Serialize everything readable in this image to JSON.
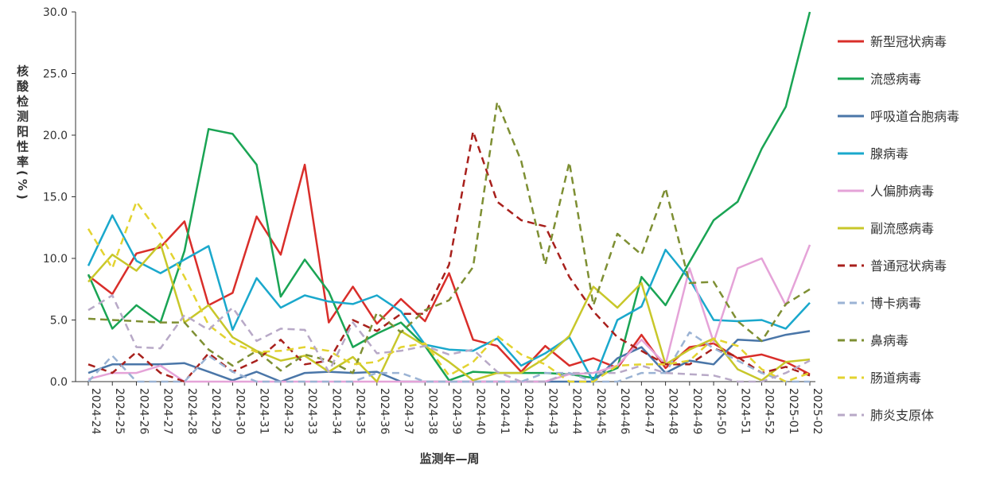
{
  "chart_data": {
    "type": "line",
    "xlabel": "监测年—周",
    "ylabel": "核酸检测阳性率(%)",
    "ylim": [
      0,
      30
    ],
    "yticks": [
      "0.0",
      "5.0",
      "10.0",
      "15.0",
      "20.0",
      "25.0",
      "30.0"
    ],
    "categories": [
      "2024-24",
      "2024-25",
      "2024-26",
      "2024-27",
      "2024-28",
      "2024-29",
      "2024-30",
      "2024-31",
      "2024-32",
      "2024-33",
      "2024-34",
      "2024-35",
      "2024-36",
      "2024-37",
      "2024-38",
      "2024-39",
      "2024-40",
      "2024-41",
      "2024-42",
      "2024-43",
      "2024-44",
      "2024-45",
      "2024-46",
      "2024-47",
      "2024-48",
      "2024-49",
      "2024-50",
      "2024-51",
      "2024-52",
      "2025-01",
      "2025-02"
    ],
    "legend_position": "right",
    "series": [
      {
        "name": "新型冠状病毒",
        "color": "#d92e2a",
        "dash": false,
        "values": [
          8.6,
          7.1,
          10.4,
          10.9,
          13.0,
          6.2,
          7.2,
          13.4,
          10.3,
          17.6,
          4.8,
          7.7,
          4.7,
          6.7,
          4.9,
          8.8,
          3.4,
          2.9,
          0.8,
          2.9,
          1.3,
          1.9,
          1.1,
          3.8,
          1.1,
          2.8,
          3.1,
          1.9,
          2.2,
          1.6,
          0.6
        ]
      },
      {
        "name": "流感病毒",
        "color": "#1aa454",
        "dash": false,
        "values": [
          8.7,
          4.3,
          6.2,
          4.8,
          10.6,
          20.5,
          20.1,
          17.6,
          6.9,
          9.9,
          7.3,
          2.8,
          3.9,
          4.8,
          2.9,
          0.1,
          0.8,
          0.7,
          0.7,
          0.7,
          0.6,
          0.3,
          1.1,
          8.5,
          6.2,
          9.7,
          13.1,
          14.6,
          18.9,
          22.3,
          30.0
        ]
      },
      {
        "name": "呼吸道合胞病毒",
        "color": "#4a76a8",
        "dash": false,
        "values": [
          0.7,
          1.4,
          1.4,
          1.4,
          1.5,
          0.8,
          0.1,
          0.8,
          0.0,
          0.7,
          0.8,
          0.7,
          0.8,
          0.0,
          0.0,
          0.0,
          0.0,
          0.0,
          0.0,
          0.0,
          0.0,
          0.0,
          1.9,
          2.8,
          0.7,
          1.7,
          1.4,
          3.4,
          3.3,
          3.8,
          4.1
        ]
      },
      {
        "name": "腺病毒",
        "color": "#1aa8cc",
        "dash": false,
        "values": [
          9.4,
          13.5,
          9.8,
          8.8,
          9.9,
          11.0,
          4.2,
          8.4,
          6.0,
          7.0,
          6.5,
          6.3,
          7.0,
          5.7,
          3.0,
          2.6,
          2.5,
          3.5,
          1.3,
          2.3,
          3.6,
          0.0,
          5.0,
          6.1,
          10.7,
          8.3,
          5.0,
          4.9,
          5.0,
          4.3,
          6.4
        ]
      },
      {
        "name": "人偏肺病毒",
        "color": "#e5a3d8",
        "dash": false,
        "values": [
          0.2,
          0.7,
          0.7,
          1.3,
          0.0,
          0.0,
          0.0,
          0.0,
          0.0,
          0.0,
          0.0,
          0.0,
          0.0,
          0.0,
          0.0,
          0.0,
          0.0,
          0.0,
          0.0,
          0.0,
          0.6,
          0.7,
          1.3,
          3.4,
          1.4,
          9.2,
          3.2,
          9.2,
          10.0,
          6.2,
          11.1
        ]
      },
      {
        "name": "副流感病毒",
        "color": "#c8c72a",
        "dash": false,
        "values": [
          8.1,
          10.3,
          9.0,
          11.2,
          4.8,
          6.2,
          3.6,
          2.5,
          1.7,
          2.1,
          0.8,
          2.0,
          0.0,
          4.1,
          2.9,
          1.6,
          0.1,
          0.7,
          0.7,
          1.9,
          3.7,
          7.7,
          6.0,
          8.0,
          1.4,
          2.6,
          3.5,
          1.0,
          0.1,
          1.6,
          1.8
        ]
      },
      {
        "name": "普通冠状病毒",
        "color": "#a8201c",
        "dash": true,
        "values": [
          1.4,
          0.7,
          2.4,
          0.7,
          0.0,
          2.3,
          0.8,
          1.7,
          3.4,
          1.4,
          1.7,
          5.0,
          4.1,
          5.5,
          5.5,
          9.5,
          20.3,
          14.6,
          13.1,
          12.6,
          8.5,
          5.7,
          3.6,
          2.5,
          1.4,
          1.4,
          2.7,
          2.0,
          0.7,
          1.2,
          0.5
        ]
      },
      {
        "name": "博卡病毒",
        "color": "#9bb3d4",
        "dash": true,
        "values": [
          0.0,
          2.1,
          0.0,
          0.0,
          0.0,
          2.1,
          0.8,
          0.0,
          0.0,
          0.0,
          0.0,
          0.0,
          0.7,
          0.7,
          0.0,
          0.0,
          0.0,
          0.0,
          0.0,
          0.7,
          0.7,
          0.0,
          0.0,
          0.7,
          0.7,
          4.0,
          2.7,
          1.7,
          0.7,
          0.0,
          0.0
        ]
      },
      {
        "name": "鼻病毒",
        "color": "#7e8f33",
        "dash": true,
        "values": [
          5.1,
          5.0,
          4.9,
          4.8,
          4.8,
          2.6,
          1.3,
          2.5,
          0.9,
          2.2,
          1.7,
          0.7,
          5.6,
          4.0,
          5.8,
          6.6,
          9.3,
          22.7,
          17.9,
          9.5,
          17.8,
          6.2,
          12.0,
          10.3,
          15.7,
          8.0,
          8.1,
          4.9,
          3.3,
          6.3,
          7.5
        ]
      },
      {
        "name": "肠道病毒",
        "color": "#e3d330",
        "dash": true,
        "values": [
          12.4,
          9.2,
          14.6,
          11.9,
          8.5,
          4.6,
          3.1,
          2.4,
          2.5,
          2.8,
          2.5,
          1.4,
          1.6,
          2.8,
          3.1,
          0.5,
          1.6,
          3.7,
          2.2,
          1.4,
          0.0,
          0.0,
          1.3,
          1.4,
          1.4,
          1.7,
          3.5,
          2.9,
          1.0,
          0.0,
          0.7
        ]
      },
      {
        "name": "肺炎支原体",
        "color": "#b8a9c7",
        "dash": true,
        "values": [
          5.8,
          7.0,
          2.8,
          2.7,
          5.4,
          4.2,
          6.0,
          3.3,
          4.3,
          4.2,
          0.8,
          4.8,
          2.3,
          2.5,
          2.9,
          2.2,
          2.6,
          0.8,
          0.0,
          0.0,
          0.7,
          0.7,
          0.7,
          1.3,
          0.7,
          0.6,
          0.5,
          0.0,
          0.0,
          0.7,
          1.7
        ]
      }
    ]
  }
}
